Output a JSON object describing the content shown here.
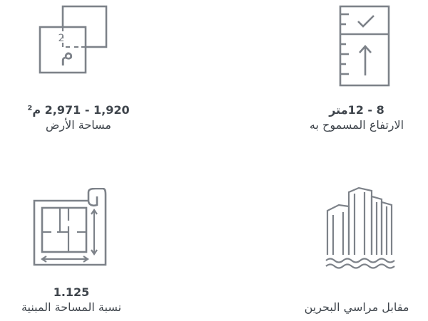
{
  "features": [
    {
      "icon": "land-area-icon",
      "icon_text": "م",
      "icon_sup": "2",
      "value": "1,920 - 2,971 م²",
      "label": "مساحة الأرض"
    },
    {
      "icon": "height-ruler-icon",
      "value": "8 - 12متر",
      "label": "الارتفاع المسموح به"
    },
    {
      "icon": "floor-plan-icon",
      "value": "1.125",
      "label": "نسبة المساحة المبنية"
    },
    {
      "icon": "buildings-water-icon",
      "label": "مقابل مراسي البحرين"
    }
  ],
  "colors": {
    "icon": "#7d8289",
    "text": "#3f454c"
  }
}
